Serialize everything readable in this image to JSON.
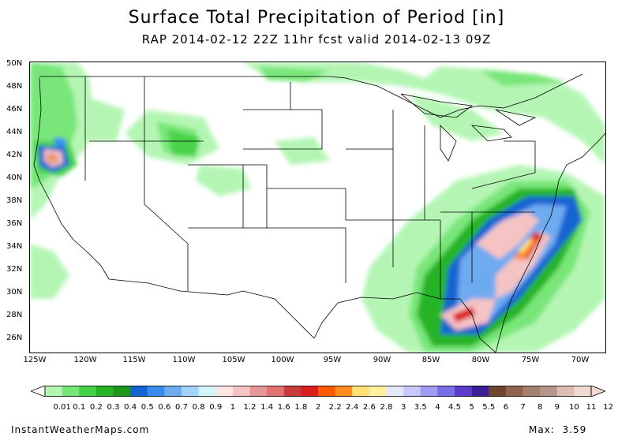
{
  "title": "Surface Total Precipitation of Period [in]",
  "subtitle": "RAP 2014-02-12 22Z 11hr fcst valid 2014-02-13 09Z",
  "lat_labels": [
    "50N",
    "48N",
    "46N",
    "44N",
    "42N",
    "40N",
    "38N",
    "36N",
    "34N",
    "32N",
    "30N",
    "28N",
    "26N"
  ],
  "lon_labels": [
    "125W",
    "120W",
    "115W",
    "110W",
    "105W",
    "100W",
    "95W",
    "90W",
    "85W",
    "80W",
    "75W",
    "70W"
  ],
  "legend": {
    "labels": [
      "0.01",
      "0.1",
      "0.2",
      "0.3",
      "0.4",
      "0.5",
      "0.6",
      "0.7",
      "0.8",
      "0.9",
      "1",
      "1.2",
      "1.4",
      "1.6",
      "1.8",
      "2",
      "2.2",
      "2.4",
      "2.6",
      "2.8",
      "3",
      "3.5",
      "4",
      "4.5",
      "5",
      "5.5",
      "6",
      "7",
      "8",
      "9",
      "10",
      "11",
      "12"
    ],
    "colors": [
      "#b4f5b4",
      "#78e678",
      "#46d246",
      "#28b428",
      "#1e961e",
      "#1464d2",
      "#3c8cf0",
      "#6eaaf0",
      "#a0d2fa",
      "#d2f5fa",
      "#ffe6e6",
      "#f5c3c3",
      "#e69696",
      "#e17373",
      "#c83c3c",
      "#dc1e1e",
      "#ff5a00",
      "#ff8c1e",
      "#ffe178",
      "#fff0a0",
      "#e6e6fa",
      "#c8c8ff",
      "#a09bf5",
      "#786ee6",
      "#5a3cc8",
      "#3c1e96",
      "#6e4632",
      "#916450",
      "#a58270",
      "#b4968c",
      "#dcbeb4",
      "#f0dcd2"
    ]
  },
  "footer": {
    "site": "InstantWeatherMaps.com",
    "max_label": "Max:",
    "max_value": "3.59"
  }
}
